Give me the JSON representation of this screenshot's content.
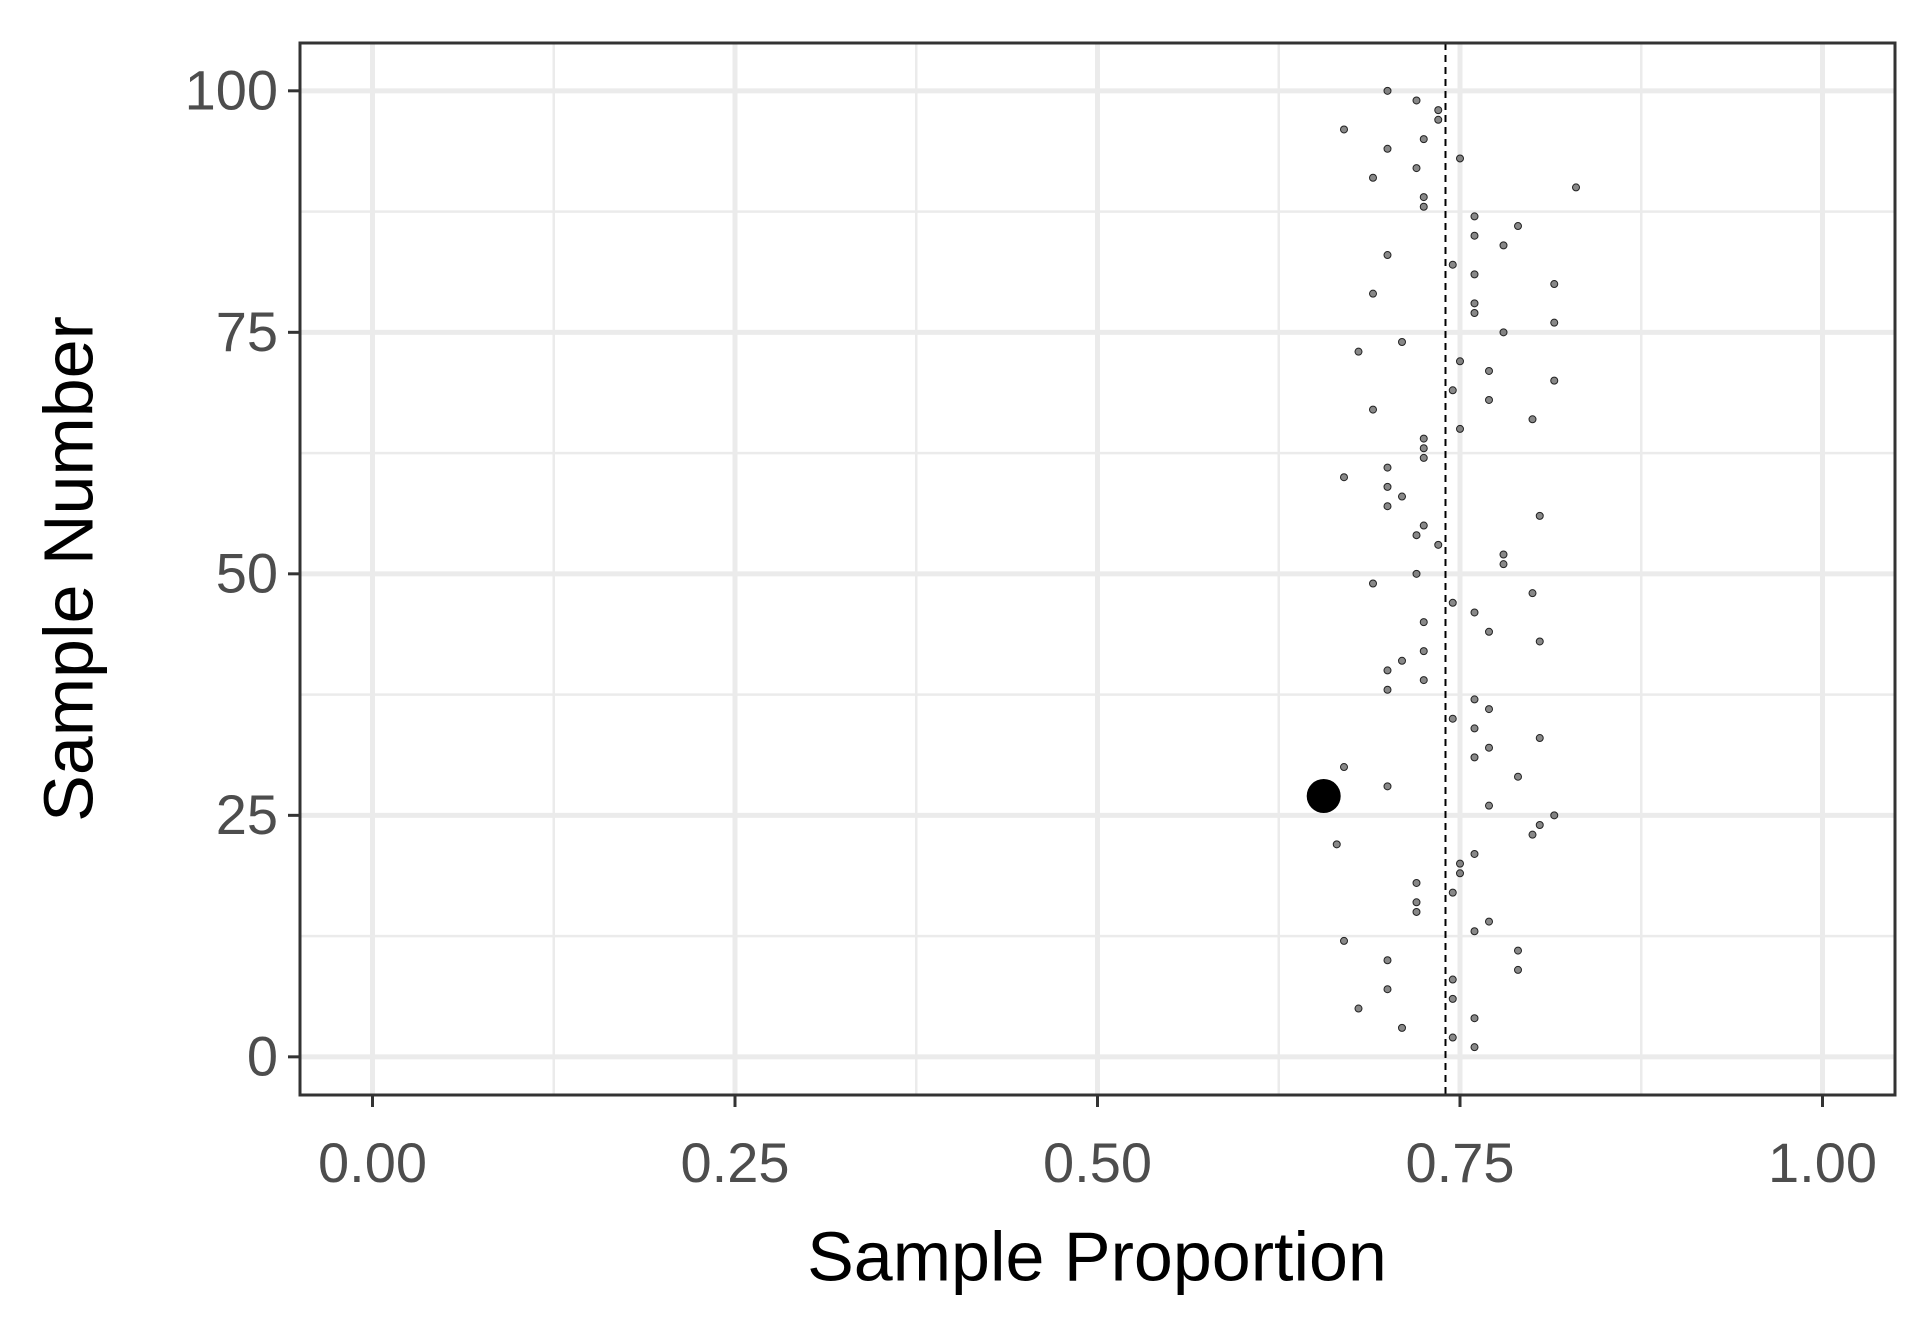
{
  "chart_data": {
    "type": "scatter",
    "x_label": "Sample Proportion",
    "y_label": "Sample Number",
    "xlim": [
      -0.05,
      1.05
    ],
    "ylim": [
      -3.95,
      104.95
    ],
    "xticks": [
      {
        "value": 0,
        "label": "0.00"
      },
      {
        "value": 0.25,
        "label": "0.25"
      },
      {
        "value": 0.5,
        "label": "0.50"
      },
      {
        "value": 0.75,
        "label": "0.75"
      },
      {
        "value": 1,
        "label": "1.00"
      }
    ],
    "yticks": [
      0,
      25,
      50,
      75,
      100
    ],
    "x_minor_grid": [
      0.125,
      0.375,
      0.625,
      0.875
    ],
    "y_minor_grid": [
      12.5,
      37.5,
      62.5,
      87.5
    ],
    "grid": true,
    "vline": 0.74,
    "series": [
      {
        "color": "#555555",
        "x": [
          0.76,
          0.745,
          0.71,
          0.76,
          0.68,
          0.745,
          0.7,
          0.745,
          0.79,
          0.7,
          0.79,
          0.67,
          0.76,
          0.77,
          0.72,
          0.72,
          0.745,
          0.72,
          0.75,
          0.75,
          0.76,
          0.665,
          0.8,
          0.805,
          0.815,
          0.77,
          0.7,
          0.79,
          0.67,
          0.76,
          0.77,
          0.805,
          0.76,
          0.745,
          0.77,
          0.76,
          0.7,
          0.725,
          0.7,
          0.71,
          0.725,
          0.805,
          0.77,
          0.725,
          0.76,
          0.745,
          0.8,
          0.69,
          0.72,
          0.78,
          0.78,
          0.735,
          0.72,
          0.725,
          0.805,
          0.7,
          0.71,
          0.7,
          0.67,
          0.7,
          0.725,
          0.725,
          0.725,
          0.75,
          0.8,
          0.69,
          0.77,
          0.745,
          0.815,
          0.77,
          0.75,
          0.68,
          0.71,
          0.78,
          0.815,
          0.76,
          0.76,
          0.69,
          0.815,
          0.76,
          0.745,
          0.7,
          0.78,
          0.76,
          0.79,
          0.76,
          0.725,
          0.725,
          0.83,
          0.69,
          0.72,
          0.75,
          0.7,
          0.725,
          0.67,
          0.735,
          0.735,
          0.72,
          0.7
        ],
        "y": [
          1,
          2,
          3,
          4,
          5,
          6,
          7,
          8,
          9,
          10,
          11,
          12,
          13,
          14,
          15,
          16,
          17,
          18,
          19,
          20,
          21,
          22,
          23,
          24,
          25,
          26,
          28,
          29,
          30,
          31,
          32,
          33,
          34,
          35,
          36,
          37,
          38,
          39,
          40,
          41,
          42,
          43,
          44,
          45,
          46,
          47,
          48,
          49,
          50,
          51,
          52,
          53,
          54,
          55,
          56,
          57,
          58,
          59,
          60,
          61,
          62,
          63,
          64,
          65,
          66,
          67,
          68,
          69,
          70,
          71,
          72,
          73,
          74,
          75,
          76,
          77,
          78,
          79,
          80,
          81,
          82,
          83,
          84,
          85,
          86,
          87,
          88,
          89,
          90,
          91,
          92,
          93,
          94,
          95,
          96,
          97,
          98,
          99,
          100
        ]
      },
      {
        "color": "#000000",
        "x": [
          0.656
        ],
        "y": [
          27
        ]
      }
    ]
  }
}
